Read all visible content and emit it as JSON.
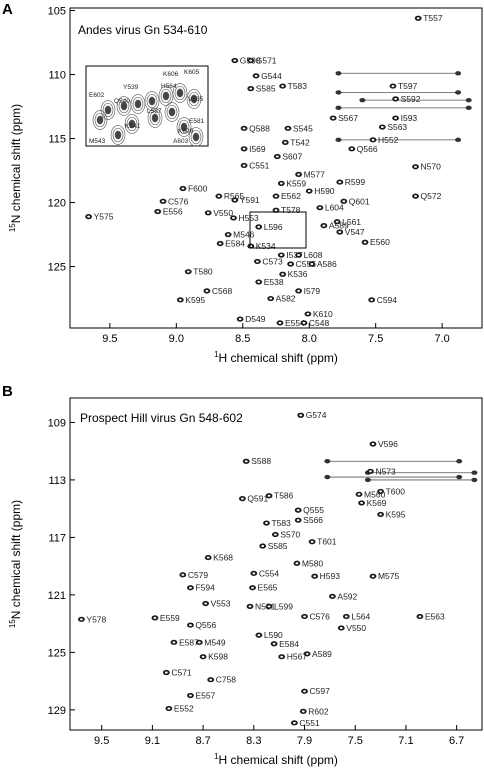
{
  "chart_data": [
    {
      "type": "scatter",
      "panel_label": "A",
      "title": "Andes virus Gn 534-610",
      "xlabel": "1H chemical shift (ppm)",
      "xlabel_sup": "1",
      "xlabel_rest": "H chemical shift (ppm)",
      "ylabel": "15N chemical shift (ppm)",
      "ylabel_sup": "15",
      "ylabel_rest": "N chemical shift (ppm)",
      "xlim": [
        9.8,
        6.7
      ],
      "ylim": [
        104.8,
        129.8
      ],
      "x_ticks": [
        9.5,
        9.0,
        8.5,
        8.0,
        7.5,
        7.0
      ],
      "x_tick_labels": [
        "9.5",
        "9.0",
        "8.5",
        "8.0",
        "7.5",
        "7.0"
      ],
      "y_ticks": [
        105,
        110,
        115,
        120,
        125
      ],
      "y_tick_labels": [
        "105",
        "110",
        "115",
        "120",
        "125"
      ],
      "grid": false,
      "inset": {
        "shown": true,
        "labels": [
          "K606",
          "K605",
          "Y539",
          "H564",
          "E602",
          "Q540",
          "V535",
          "L587",
          "E581",
          "K541",
          "K609",
          "M543",
          "A603"
        ]
      },
      "peaks": [
        {
          "label": "T557",
          "x": 7.18,
          "y": 105.6
        },
        {
          "label": "G598",
          "x": 8.56,
          "y": 108.9
        },
        {
          "label": "G571",
          "x": 8.44,
          "y": 108.9
        },
        {
          "label": "G544",
          "x": 8.4,
          "y": 110.1
        },
        {
          "label": "T597",
          "x": 7.37,
          "y": 110.9
        },
        {
          "label": "S585",
          "x": 8.44,
          "y": 111.1
        },
        {
          "label": "T583",
          "x": 8.2,
          "y": 110.9
        },
        {
          "label": "S592",
          "x": 7.35,
          "y": 111.9
        },
        {
          "label": "I593",
          "x": 7.35,
          "y": 113.4
        },
        {
          "label": "S567",
          "x": 7.82,
          "y": 113.4
        },
        {
          "label": "S563",
          "x": 7.45,
          "y": 114.1
        },
        {
          "label": "Q588",
          "x": 8.49,
          "y": 114.2
        },
        {
          "label": "S545",
          "x": 8.16,
          "y": 114.2
        },
        {
          "label": "H552",
          "x": 7.52,
          "y": 115.1
        },
        {
          "label": "I569",
          "x": 8.49,
          "y": 115.8
        },
        {
          "label": "T542",
          "x": 8.18,
          "y": 115.3
        },
        {
          "label": "Q566",
          "x": 7.68,
          "y": 115.8
        },
        {
          "label": "S607",
          "x": 8.24,
          "y": 116.4
        },
        {
          "label": "C551",
          "x": 8.49,
          "y": 117.1
        },
        {
          "label": "N570",
          "x": 7.2,
          "y": 117.2
        },
        {
          "label": "M577",
          "x": 8.08,
          "y": 117.8
        },
        {
          "label": "R599",
          "x": 7.77,
          "y": 118.4
        },
        {
          "label": "K559",
          "x": 8.21,
          "y": 118.5
        },
        {
          "label": "F600",
          "x": 8.95,
          "y": 118.9
        },
        {
          "label": "H590",
          "x": 8.0,
          "y": 119.1
        },
        {
          "label": "R565",
          "x": 8.68,
          "y": 119.5
        },
        {
          "label": "Y591",
          "x": 8.56,
          "y": 119.8
        },
        {
          "label": "E562",
          "x": 8.25,
          "y": 119.5
        },
        {
          "label": "C576",
          "x": 9.1,
          "y": 119.9
        },
        {
          "label": "Q601",
          "x": 7.74,
          "y": 119.9
        },
        {
          "label": "Q572",
          "x": 7.2,
          "y": 119.5
        },
        {
          "label": "L604",
          "x": 7.92,
          "y": 120.4
        },
        {
          "label": "T578",
          "x": 8.25,
          "y": 120.6
        },
        {
          "label": "E556",
          "x": 9.14,
          "y": 120.7
        },
        {
          "label": "V550",
          "x": 8.76,
          "y": 120.8
        },
        {
          "label": "Y575",
          "x": 9.66,
          "y": 121.1
        },
        {
          "label": "H553",
          "x": 8.57,
          "y": 121.2
        },
        {
          "label": "L561",
          "x": 7.79,
          "y": 121.5
        },
        {
          "label": "A589",
          "x": 7.89,
          "y": 121.8
        },
        {
          "label": "L596",
          "x": 8.38,
          "y": 121.9
        },
        {
          "label": "V547",
          "x": 7.77,
          "y": 122.3
        },
        {
          "label": "M546",
          "x": 8.61,
          "y": 122.5
        },
        {
          "label": "E584",
          "x": 8.67,
          "y": 123.2
        },
        {
          "label": "K534",
          "x": 8.44,
          "y": 123.4
        },
        {
          "label": "E560",
          "x": 7.58,
          "y": 123.1
        },
        {
          "label": "I537",
          "x": 8.21,
          "y": 124.1
        },
        {
          "label": "L608",
          "x": 8.08,
          "y": 124.1
        },
        {
          "label": "C573",
          "x": 8.39,
          "y": 124.6
        },
        {
          "label": "C555",
          "x": 8.14,
          "y": 124.8
        },
        {
          "label": "A586",
          "x": 7.98,
          "y": 124.8
        },
        {
          "label": "T580",
          "x": 8.91,
          "y": 125.4
        },
        {
          "label": "K536",
          "x": 8.2,
          "y": 125.6
        },
        {
          "label": "E538",
          "x": 8.38,
          "y": 126.2
        },
        {
          "label": "C568",
          "x": 8.77,
          "y": 126.9
        },
        {
          "label": "I579",
          "x": 8.08,
          "y": 126.9
        },
        {
          "label": "K595",
          "x": 8.97,
          "y": 127.6
        },
        {
          "label": "A582",
          "x": 8.29,
          "y": 127.5
        },
        {
          "label": "C594",
          "x": 7.53,
          "y": 127.6
        },
        {
          "label": "K610",
          "x": 8.01,
          "y": 128.7
        },
        {
          "label": "D549",
          "x": 8.52,
          "y": 129.1
        },
        {
          "label": "E554",
          "x": 8.22,
          "y": 129.4
        },
        {
          "label": "C548",
          "x": 8.04,
          "y": 129.4
        }
      ],
      "sidechain_pairs": [
        {
          "x1": 7.78,
          "x2": 6.88,
          "y": 109.9
        },
        {
          "x1": 7.78,
          "x2": 6.88,
          "y": 111.4
        },
        {
          "x1": 7.6,
          "x2": 6.8,
          "y": 112.0
        },
        {
          "x1": 7.78,
          "x2": 6.8,
          "y": 112.6
        },
        {
          "x1": 7.78,
          "x2": 6.88,
          "y": 115.1
        }
      ]
    },
    {
      "type": "scatter",
      "panel_label": "B",
      "title": "Prospect Hill virus Gn 548-602",
      "xlabel": "1H chemical shift (ppm)",
      "xlabel_sup": "1",
      "xlabel_rest": "H chemical shift (ppm)",
      "ylabel": "15N chemical shift (ppm)",
      "ylabel_sup": "15",
      "ylabel_rest": "N chemical shift (ppm)",
      "xlim": [
        9.75,
        6.5
      ],
      "ylim": [
        107.3,
        130.4
      ],
      "x_ticks": [
        9.5,
        9.1,
        8.7,
        8.3,
        7.9,
        7.5,
        7.1,
        6.7
      ],
      "x_tick_labels": [
        "9.5",
        "9.1",
        "8.7",
        "8.3",
        "7.9",
        "7.5",
        "7.1",
        "6.7"
      ],
      "y_ticks": [
        109,
        113,
        117,
        121,
        125,
        129
      ],
      "y_tick_labels": [
        "109",
        "113",
        "117",
        "121",
        "125",
        "129"
      ],
      "grid": false,
      "peaks": [
        {
          "label": "G574",
          "x": 7.93,
          "y": 108.5
        },
        {
          "label": "V596",
          "x": 7.36,
          "y": 110.5
        },
        {
          "label": "S588",
          "x": 8.36,
          "y": 111.7
        },
        {
          "label": "N573",
          "x": 7.38,
          "y": 112.4
        },
        {
          "label": "T600",
          "x": 7.3,
          "y": 113.8
        },
        {
          "label": "M560",
          "x": 7.47,
          "y": 114.0
        },
        {
          "label": "K569",
          "x": 7.45,
          "y": 114.6
        },
        {
          "label": "T586",
          "x": 8.18,
          "y": 114.1
        },
        {
          "label": "Q591",
          "x": 8.39,
          "y": 114.3
        },
        {
          "label": "Q555",
          "x": 7.95,
          "y": 115.1
        },
        {
          "label": "K595",
          "x": 7.3,
          "y": 115.4
        },
        {
          "label": "S566",
          "x": 7.95,
          "y": 115.8
        },
        {
          "label": "T583",
          "x": 8.2,
          "y": 116.0
        },
        {
          "label": "S570",
          "x": 8.13,
          "y": 116.8
        },
        {
          "label": "T601",
          "x": 7.84,
          "y": 117.3
        },
        {
          "label": "S585",
          "x": 8.23,
          "y": 117.6
        },
        {
          "label": "K568",
          "x": 8.66,
          "y": 118.4
        },
        {
          "label": "M580",
          "x": 7.96,
          "y": 118.8
        },
        {
          "label": "C579",
          "x": 8.86,
          "y": 119.6
        },
        {
          "label": "C554",
          "x": 8.3,
          "y": 119.5
        },
        {
          "label": "H593",
          "x": 7.82,
          "y": 119.7
        },
        {
          "label": "M575",
          "x": 7.36,
          "y": 119.7
        },
        {
          "label": "F594",
          "x": 8.8,
          "y": 120.5
        },
        {
          "label": "E565",
          "x": 8.31,
          "y": 120.5
        },
        {
          "label": "V553",
          "x": 8.68,
          "y": 121.6
        },
        {
          "label": "N581",
          "x": 8.33,
          "y": 121.8
        },
        {
          "label": "L599",
          "x": 8.18,
          "y": 121.8
        },
        {
          "label": "A592",
          "x": 7.68,
          "y": 121.1
        },
        {
          "label": "Y578",
          "x": 9.66,
          "y": 122.7
        },
        {
          "label": "E559",
          "x": 9.08,
          "y": 122.6
        },
        {
          "label": "C576",
          "x": 7.9,
          "y": 122.5
        },
        {
          "label": "L564",
          "x": 7.57,
          "y": 122.5
        },
        {
          "label": "E563",
          "x": 6.99,
          "y": 122.5
        },
        {
          "label": "Q556",
          "x": 8.8,
          "y": 123.1
        },
        {
          "label": "V550",
          "x": 7.61,
          "y": 123.3
        },
        {
          "label": "L590",
          "x": 8.26,
          "y": 123.8
        },
        {
          "label": "E587",
          "x": 8.93,
          "y": 124.3
        },
        {
          "label": "M549",
          "x": 8.73,
          "y": 124.3
        },
        {
          "label": "E584",
          "x": 8.14,
          "y": 124.4
        },
        {
          "label": "A589",
          "x": 7.88,
          "y": 125.1
        },
        {
          "label": "K598",
          "x": 8.7,
          "y": 125.3
        },
        {
          "label": "H567",
          "x": 8.08,
          "y": 125.3
        },
        {
          "label": "C571",
          "x": 8.99,
          "y": 126.4
        },
        {
          "label": "C758",
          "x": 8.64,
          "y": 126.9
        },
        {
          "label": "C597",
          "x": 7.9,
          "y": 127.7
        },
        {
          "label": "E557",
          "x": 8.8,
          "y": 128.0
        },
        {
          "label": "E552",
          "x": 8.97,
          "y": 128.9
        },
        {
          "label": "R602",
          "x": 7.91,
          "y": 129.1
        },
        {
          "label": "C551",
          "x": 7.98,
          "y": 129.9
        }
      ],
      "sidechain_pairs": [
        {
          "x1": 7.72,
          "x2": 6.68,
          "y": 111.7
        },
        {
          "x1": 7.72,
          "x2": 6.68,
          "y": 112.8
        },
        {
          "x1": 7.4,
          "x2": 6.56,
          "y": 112.5
        },
        {
          "x1": 7.4,
          "x2": 6.56,
          "y": 113.0
        }
      ]
    }
  ]
}
